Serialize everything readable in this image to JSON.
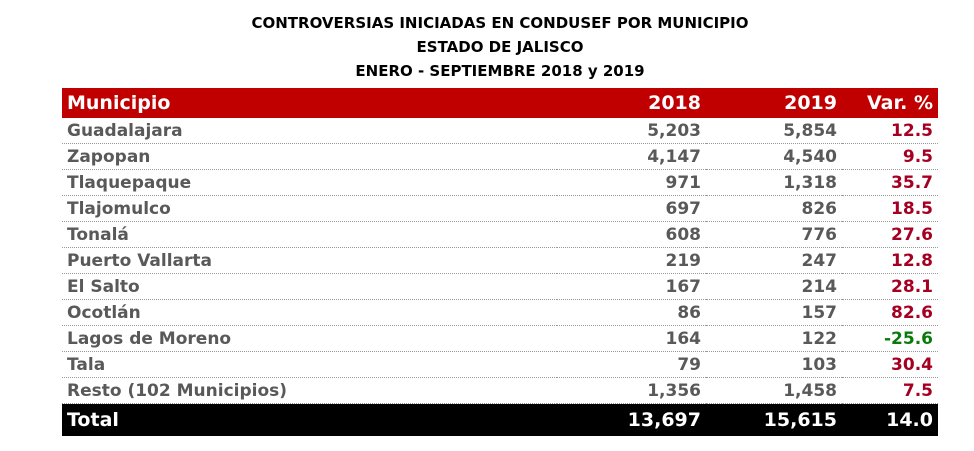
{
  "header": {
    "title": [
      "CONTROVERSIAS INICIADAS EN CONDUSEF POR MUNICIPIO",
      "ESTADO DE JALISCO",
      "ENERO - SEPTIEMBRE 2018 y 2019"
    ]
  },
  "table": {
    "columns": [
      "Municipio",
      "2018",
      "2019",
      "Var. %"
    ],
    "rows": [
      [
        "Guadalajara",
        "5,203",
        "5,854",
        "12.5"
      ],
      [
        "Zapopan",
        "4,147",
        "4,540",
        "9.5"
      ],
      [
        "Tlaquepaque",
        "971",
        "1,318",
        "35.7"
      ],
      [
        "Tlajomulco",
        "697",
        "826",
        "18.5"
      ],
      [
        "Tonalá",
        "608",
        "776",
        "27.6"
      ],
      [
        "Puerto Vallarta",
        "219",
        "247",
        "12.8"
      ],
      [
        "El Salto",
        "167",
        "214",
        "28.1"
      ],
      [
        "Ocotlán",
        "86",
        "157",
        "82.6"
      ],
      [
        "Lagos de Moreno",
        "164",
        "122",
        "-25.6"
      ],
      [
        "Tala",
        "79",
        "103",
        "30.4"
      ],
      [
        "Resto (102 Municipios)",
        "1,356",
        "1,458",
        "7.5"
      ]
    ],
    "total": [
      "Total",
      "13,697",
      "15,615",
      "14.0"
    ]
  }
}
